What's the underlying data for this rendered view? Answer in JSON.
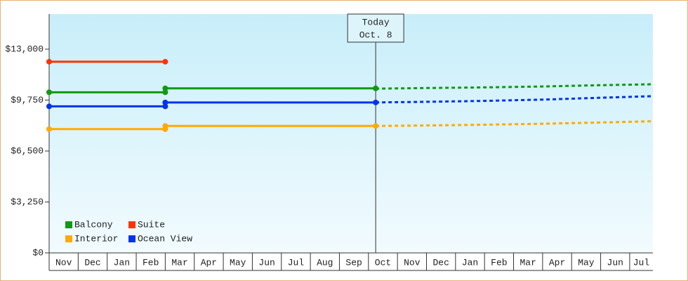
{
  "chart_data": {
    "type": "line",
    "categories": [
      "Nov",
      "Dec",
      "Jan",
      "Feb",
      "Mar",
      "Apr",
      "May",
      "Jun",
      "Jul",
      "Aug",
      "Sep",
      "Oct",
      "Nov",
      "Dec",
      "Jan",
      "Feb",
      "Mar",
      "Apr",
      "May",
      "Jun",
      "Jul"
    ],
    "xlim": [
      0,
      20.8
    ],
    "ylim": [
      0,
      15240
    ],
    "yticks": [
      {
        "value": 0,
        "label": "$0"
      },
      {
        "value": 3250,
        "label": "$3,250"
      },
      {
        "value": 6500,
        "label": "$6,500"
      },
      {
        "value": 9750,
        "label": "$9,750"
      },
      {
        "value": 13000,
        "label": "$13,000"
      }
    ],
    "annotation": {
      "lines": [
        "Today",
        "Oct. 8"
      ],
      "x": 11.25
    },
    "series": [
      {
        "name": "Balcony",
        "color": "#119911",
        "x": [
          0,
          4,
          null,
          4,
          11.25
        ],
        "values": [
          10250,
          10250,
          null,
          10500,
          10500
        ],
        "forecast_x": [
          11.25,
          13,
          15,
          17,
          19,
          20.8
        ],
        "forecast_values": [
          10480,
          10520,
          10560,
          10620,
          10700,
          10760
        ]
      },
      {
        "name": "Suite",
        "color": "#ff3300",
        "x": [
          0,
          4
        ],
        "values": [
          12200,
          12200
        ]
      },
      {
        "name": "Interior",
        "color": "#ffaa00",
        "x": [
          0,
          4,
          null,
          4,
          11.25
        ],
        "values": [
          7900,
          7900,
          null,
          8100,
          8100
        ],
        "forecast_x": [
          11.25,
          13,
          15,
          17,
          19,
          20.8
        ],
        "forecast_values": [
          8100,
          8130,
          8180,
          8240,
          8320,
          8400
        ]
      },
      {
        "name": "Ocean View",
        "color": "#0033ee",
        "x": [
          0,
          4,
          null,
          4,
          11.25
        ],
        "values": [
          9350,
          9350,
          null,
          9600,
          9600
        ],
        "forecast_x": [
          11.25,
          13,
          15,
          17,
          19,
          20.8
        ],
        "forecast_values": [
          9600,
          9640,
          9700,
          9780,
          9900,
          10000
        ]
      }
    ]
  }
}
